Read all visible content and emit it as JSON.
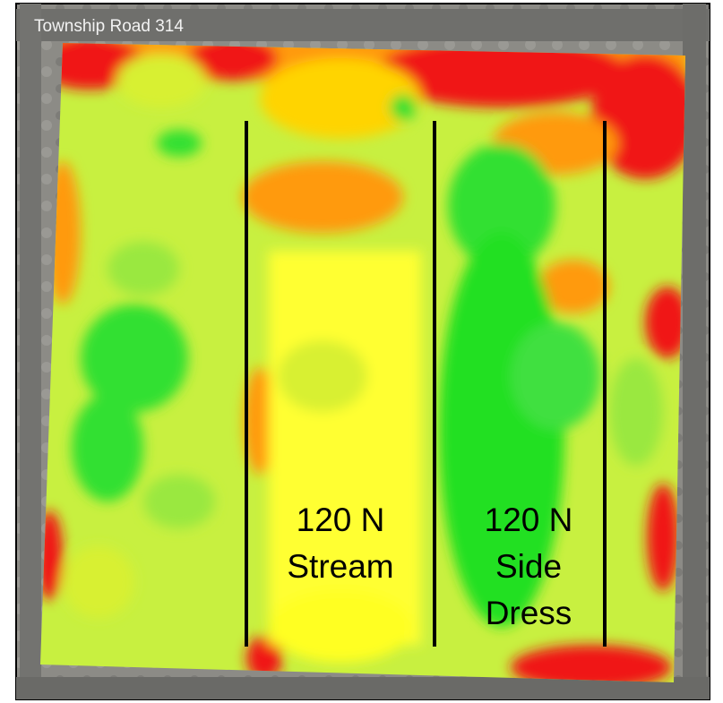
{
  "map": {
    "road_label": "Township Road 314",
    "zones": [
      {
        "label_lines": [
          "120 N",
          "Stream"
        ]
      },
      {
        "label_lines": [
          "120 N",
          "Side",
          "Dress"
        ]
      }
    ]
  }
}
